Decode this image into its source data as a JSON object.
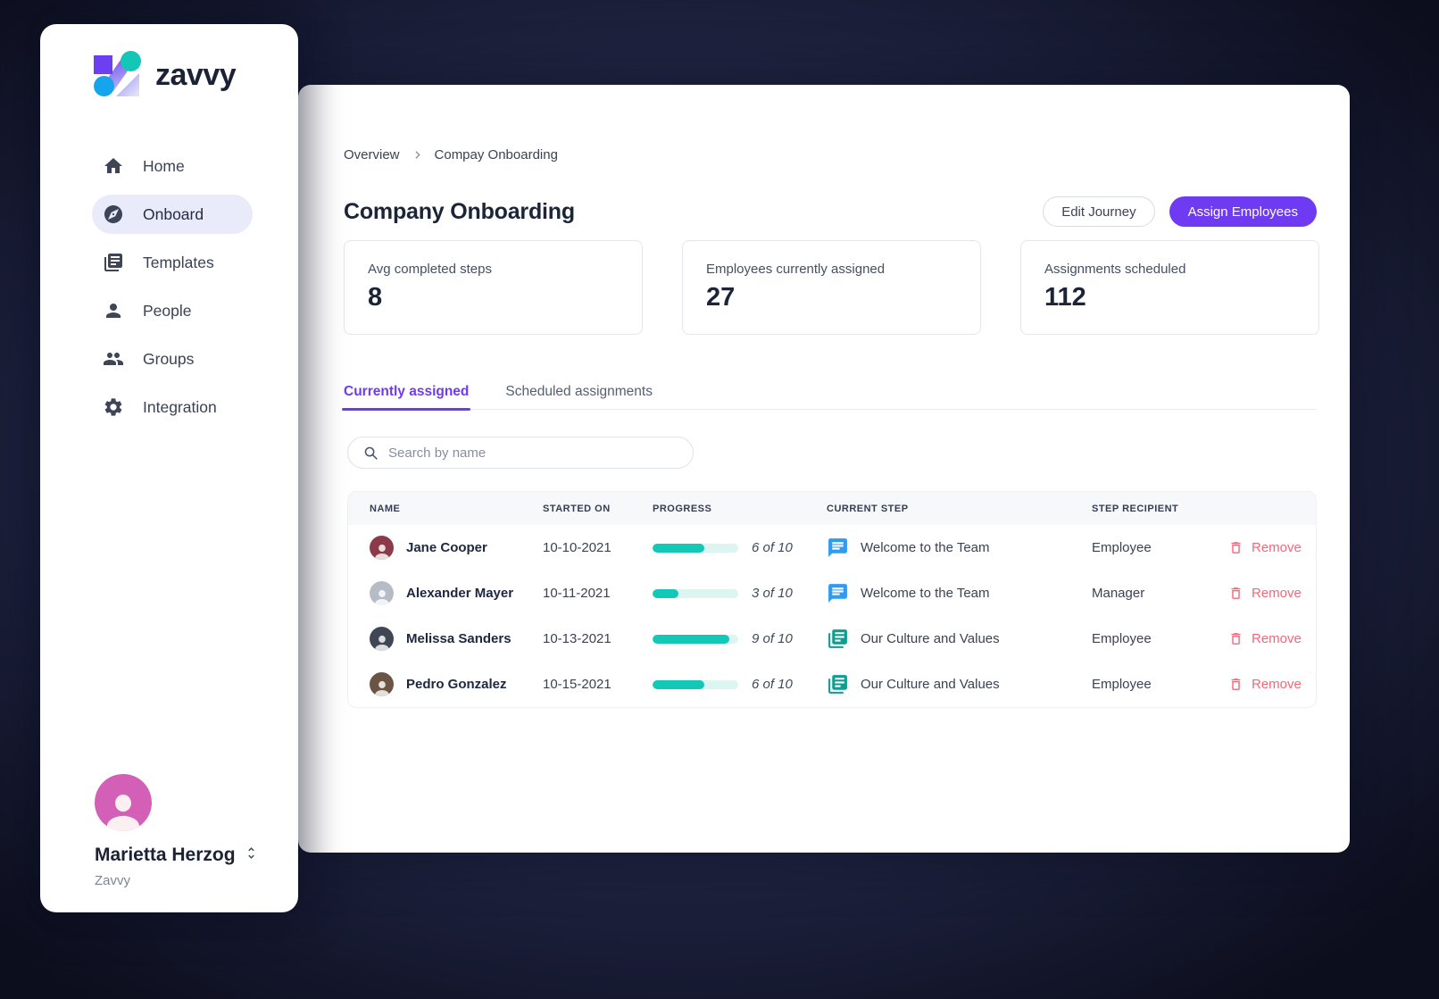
{
  "brand": {
    "name": "zavvy"
  },
  "sidebar": {
    "items": [
      {
        "label": "Home",
        "icon": "home-icon",
        "active": false
      },
      {
        "label": "Onboard",
        "icon": "compass-icon",
        "active": true
      },
      {
        "label": "Templates",
        "icon": "templates-icon",
        "active": false
      },
      {
        "label": "People",
        "icon": "person-icon",
        "active": false
      },
      {
        "label": "Groups",
        "icon": "groups-icon",
        "active": false
      },
      {
        "label": "Integration",
        "icon": "gear-icon",
        "active": false
      }
    ],
    "profile": {
      "name": "Marietta Herzog",
      "company": "Zavvy"
    }
  },
  "breadcrumb": {
    "items": [
      "Overview",
      "Compay Onboarding"
    ]
  },
  "page": {
    "title": "Company Onboarding",
    "actions": {
      "edit_journey": "Edit Journey",
      "assign_employees": "Assign Employees"
    }
  },
  "stats": [
    {
      "label": "Avg completed steps",
      "value": "8"
    },
    {
      "label": "Employees currently assigned",
      "value": "27"
    },
    {
      "label": "Assignments scheduled",
      "value": "112"
    }
  ],
  "tabs": [
    {
      "label": "Currently assigned",
      "active": true
    },
    {
      "label": "Scheduled assignments",
      "active": false
    }
  ],
  "search": {
    "placeholder": "Search by name"
  },
  "table": {
    "headers": [
      "NAME",
      "STARTED ON",
      "PROGRESS",
      "CURRENT STEP",
      "STEP RECIPIENT"
    ],
    "rows": [
      {
        "name": "Jane Cooper",
        "started_on": "10-10-2021",
        "progress": {
          "value": 6,
          "total": 10,
          "label": "6 of 10"
        },
        "current_step": "Welcome to the Team",
        "step_icon": "chat-icon",
        "recipient": "Employee",
        "remove_label": "Remove"
      },
      {
        "name": "Alexander Mayer",
        "started_on": "10-11-2021",
        "progress": {
          "value": 3,
          "total": 10,
          "label": "3 of 10"
        },
        "current_step": "Welcome to the Team",
        "step_icon": "chat-icon",
        "recipient": "Manager",
        "remove_label": "Remove"
      },
      {
        "name": "Melissa Sanders",
        "started_on": "10-13-2021",
        "progress": {
          "value": 9,
          "total": 10,
          "label": "9 of 10"
        },
        "current_step": "Our Culture and Values",
        "step_icon": "document-stack-icon",
        "recipient": "Employee",
        "remove_label": "Remove"
      },
      {
        "name": "Pedro Gonzalez",
        "started_on": "10-15-2021",
        "progress": {
          "value": 6,
          "total": 10,
          "label": "6 of 10"
        },
        "current_step": "Our Culture and Values",
        "step_icon": "document-stack-icon",
        "recipient": "Employee",
        "remove_label": "Remove"
      }
    ]
  },
  "colors": {
    "accent": "#6e3bf3",
    "teal": "#12c9b7",
    "teal-track": "#dcf5f1",
    "danger": "#f2687a",
    "chat-blue": "#2f9bf2",
    "doc-teal": "#0f9d8f"
  }
}
